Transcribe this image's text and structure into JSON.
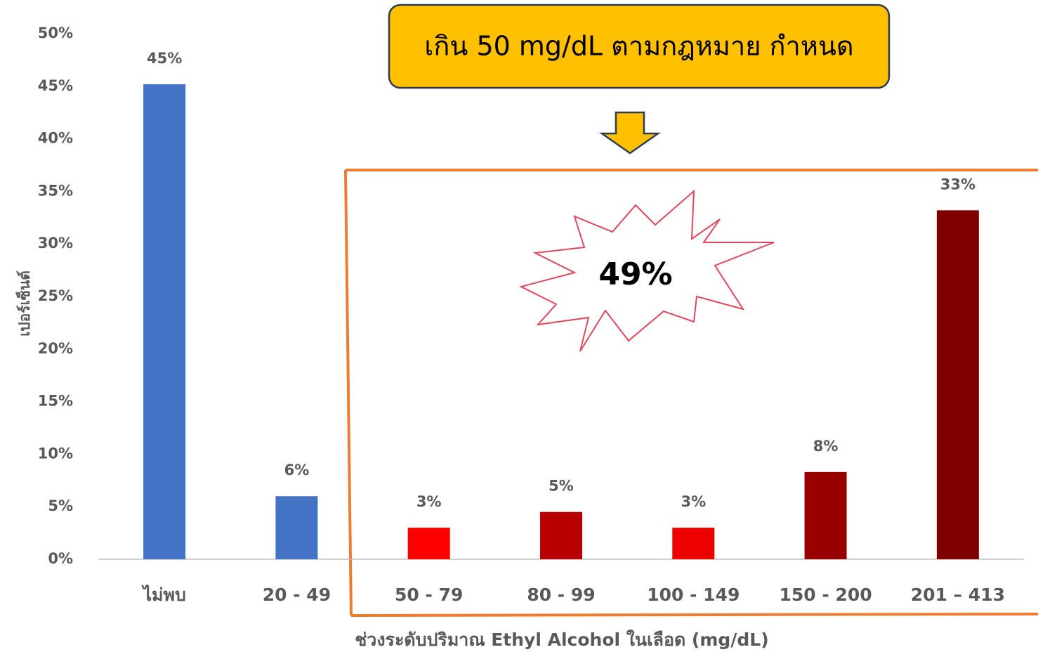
{
  "chart_data": {
    "type": "bar",
    "y_label": "เปอร์เซ็นต์",
    "x_label": "ช่วงระดับปริมาณ Ethyl Alcohol ในเลือด (mg/dL)",
    "categories": [
      "ไม่พบ",
      "20 - 49",
      "50 - 79",
      "80 - 99",
      "100 - 149",
      "150 - 200",
      "201 – 413"
    ],
    "values": [
      45.2,
      6,
      3,
      4.5,
      3,
      8.3,
      33.2
    ],
    "value_labels": [
      "45%",
      "6%",
      "3%",
      "5%",
      "3%",
      "8%",
      "33%"
    ],
    "colors": [
      "#4472c4",
      "#4472c4",
      "#ff0000",
      "#b80000",
      "#ee0000",
      "#990000",
      "#7f0000"
    ],
    "ylim": [
      0,
      50
    ],
    "yticks": [
      {
        "value": 0,
        "label": "0%"
      },
      {
        "value": 5,
        "label": "5%"
      },
      {
        "value": 10,
        "label": "10%"
      },
      {
        "value": 15,
        "label": "15%"
      },
      {
        "value": 20,
        "label": "20%"
      },
      {
        "value": 25,
        "label": "25%"
      },
      {
        "value": 30,
        "label": "30%"
      },
      {
        "value": 35,
        "label": "35%"
      },
      {
        "value": 40,
        "label": "40%"
      },
      {
        "value": 45,
        "label": "45%"
      },
      {
        "value": 50,
        "label": "50%"
      }
    ],
    "grid": false,
    "annotations": {
      "callout": "เกิน 50 mg/dL ตามกฎหมาย กำหนด",
      "burst": "49%"
    }
  }
}
